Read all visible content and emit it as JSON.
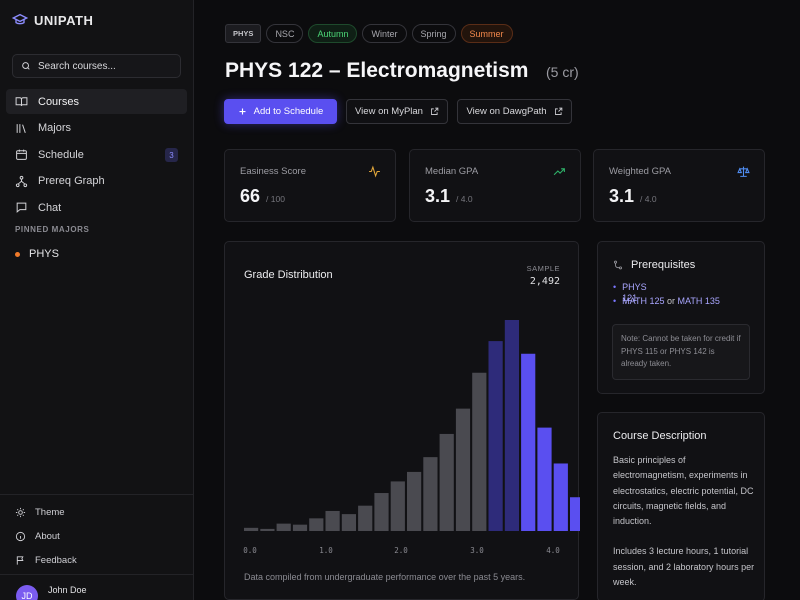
{
  "app": {
    "brand": "UNIPATH"
  },
  "sidebar": {
    "search_placeholder": "Search courses...",
    "nav": [
      {
        "label": "Courses",
        "icon": "book-open-icon",
        "active": true
      },
      {
        "label": "Majors",
        "icon": "library-icon"
      },
      {
        "label": "Schedule",
        "icon": "calendar-icon",
        "badge": "3"
      },
      {
        "label": "Prereq Graph",
        "icon": "graph-icon"
      },
      {
        "label": "Chat",
        "icon": "chat-icon"
      }
    ],
    "pinned_label": "PINNED MAJORS",
    "pinned": [
      {
        "label": "PHYS",
        "color": "#f07a2a"
      }
    ],
    "footer": [
      {
        "label": "Theme",
        "icon": "sun-icon"
      },
      {
        "label": "About",
        "icon": "info-icon"
      },
      {
        "label": "Feedback",
        "icon": "flag-icon"
      }
    ],
    "user": {
      "initials": "JD",
      "name": "John Doe"
    }
  },
  "course": {
    "dept_tag": "PHYS",
    "tags": [
      "NSC",
      "Autumn",
      "Winter",
      "Spring",
      "Summer"
    ],
    "title": "PHYS 122 – Electromagnetism",
    "credits": "(5 cr)",
    "buttons": {
      "add": "Add to Schedule",
      "myplan": "View on MyPlan",
      "dawgpath": "View on DawgPath"
    }
  },
  "stats": [
    {
      "label": "Easiness Score",
      "value": "66",
      "sub": "/ 100",
      "icon": "activity-icon",
      "color": "#e0a53a"
    },
    {
      "label": "Median GPA",
      "value": "3.1",
      "sub": "/ 4.0",
      "icon": "trending-up-icon",
      "color": "#2fb36a"
    },
    {
      "label": "Weighted GPA",
      "value": "3.1",
      "sub": "/ 4.0",
      "icon": "scale-icon",
      "color": "#4f8cf0"
    }
  ],
  "chart_data": {
    "type": "bar",
    "title": "Grade Distribution",
    "sample_label": "SAMPLE",
    "sample_value": "2,492",
    "x_ticks": [
      "0.0",
      "1.0",
      "2.0",
      "3.0",
      "4.0"
    ],
    "x": [
      0.0,
      0.2,
      0.4,
      0.6,
      0.8,
      1.0,
      1.2,
      1.4,
      1.6,
      1.8,
      2.0,
      2.2,
      2.4,
      2.6,
      2.8,
      3.0,
      3.2,
      3.4,
      3.6,
      3.8,
      4.0
    ],
    "values": [
      3,
      2,
      7,
      6,
      12,
      19,
      16,
      24,
      36,
      47,
      56,
      70,
      92,
      116,
      150,
      180,
      200,
      168,
      98,
      64,
      32
    ],
    "colors": {
      "low": "#4a4a50",
      "dark_accent": "#2e2b7a",
      "accent": "#5a4ff0"
    },
    "note": "Data compiled from undergraduate performance over the past 5 years."
  },
  "prereqs": {
    "title": "Prerequisites",
    "items": [
      {
        "text": "PHYS 121"
      },
      {
        "a": "MATH 125",
        "or": " or ",
        "b": "MATH 135"
      }
    ],
    "note": "Note: Cannot be taken for credit if PHYS 115 or PHYS 142 is already taken."
  },
  "description": {
    "title": "Course Description",
    "p1": "Basic principles of electromagnetism, experiments in electrostatics, electric potential, DC circuits, magnetic fields, and induction.",
    "p2": "Includes 3 lecture hours, 1 tutorial session, and 2 laboratory hours per week."
  }
}
